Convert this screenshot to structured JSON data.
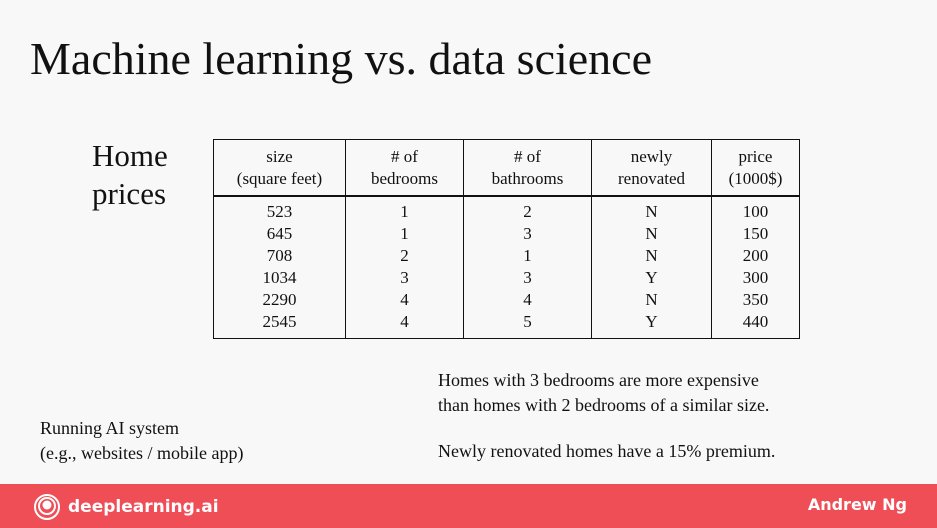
{
  "slide": {
    "title": "Machine learning vs. data science",
    "table_label_line1": "Home",
    "table_label_line2": "prices"
  },
  "table": {
    "headers": [
      [
        "size",
        "(square feet)"
      ],
      [
        "# of",
        "bedrooms"
      ],
      [
        "# of",
        "bathrooms"
      ],
      [
        "newly",
        "renovated"
      ],
      [
        "price",
        "(1000$)"
      ]
    ],
    "columns": [
      [
        "523",
        "645",
        "708",
        "1034",
        "2290",
        "2545"
      ],
      [
        "1",
        "1",
        "2",
        "3",
        "4",
        "4"
      ],
      [
        "2",
        "3",
        "1",
        "3",
        "4",
        "5"
      ],
      [
        "N",
        "N",
        "N",
        "Y",
        "N",
        "Y"
      ],
      [
        "100",
        "150",
        "200",
        "300",
        "350",
        "440"
      ]
    ]
  },
  "notes": {
    "right_line1": "Homes with 3 bedrooms are more expensive",
    "right_line2": "than homes with 2 bedrooms of a similar size.",
    "right_line3": "Newly renovated homes have a 15% premium.",
    "left_line1": "Running AI system",
    "left_line2": "(e.g., websites / mobile app)"
  },
  "footer": {
    "brand": "deeplearning.ai",
    "author": "Andrew Ng",
    "bar_color": "#ef4e56"
  }
}
